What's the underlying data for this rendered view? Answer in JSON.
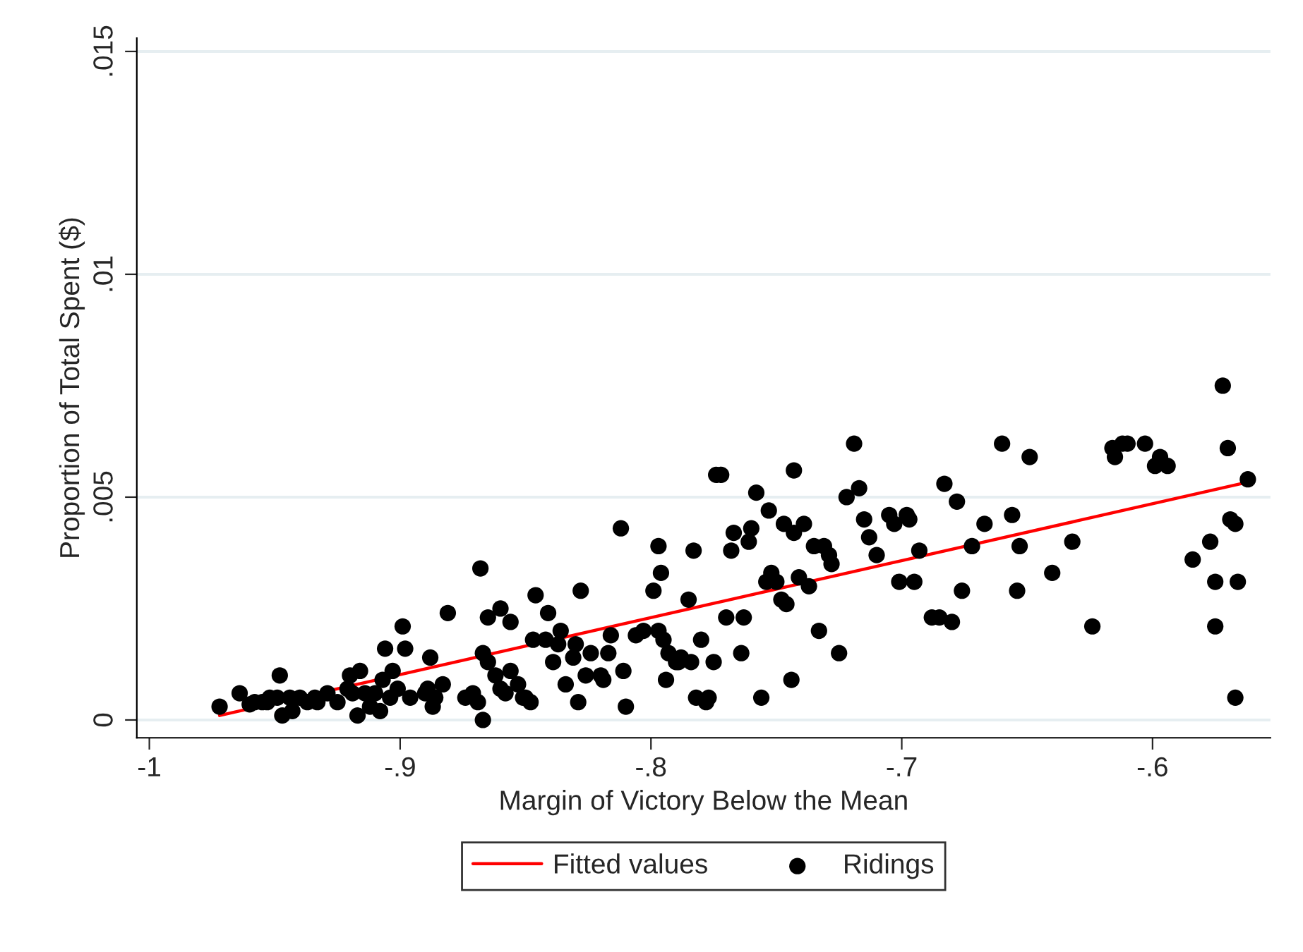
{
  "chart_data": {
    "type": "scatter",
    "xlabel": "Margin of Victory Below the Mean",
    "ylabel": "Proportion of Total Spent ($)",
    "xlim": [
      -1.005,
      -0.553
    ],
    "ylim": [
      -0.0004,
      0.0153
    ],
    "xticks": [
      {
        "value": -1,
        "label": "-1"
      },
      {
        "value": -0.9,
        "label": "-.9"
      },
      {
        "value": -0.8,
        "label": "-.8"
      },
      {
        "value": -0.7,
        "label": "-.7"
      },
      {
        "value": -0.6,
        "label": "-.6"
      }
    ],
    "yticks": [
      {
        "value": 0,
        "label": "0"
      },
      {
        "value": 0.005,
        "label": ".005"
      },
      {
        "value": 0.01,
        "label": ".01"
      },
      {
        "value": 0.015,
        "label": ".015"
      }
    ],
    "grid": "y",
    "legend": "bottom",
    "series": [
      {
        "name": "Fitted values",
        "type": "line",
        "color": "#ff0000",
        "x": [
          -0.972,
          -0.561
        ],
        "values": [
          0.0001,
          0.00535
        ]
      },
      {
        "name": "Ridings",
        "type": "scatter",
        "marker": "circle",
        "color": "#000000",
        "x": [
          -0.972,
          -0.964,
          -0.96,
          -0.958,
          -0.955,
          -0.953,
          -0.952,
          -0.949,
          -0.947,
          -0.948,
          -0.944,
          -0.943,
          -0.94,
          -0.937,
          -0.934,
          -0.933,
          -0.929,
          -0.925,
          -0.921,
          -0.92,
          -0.919,
          -0.917,
          -0.916,
          -0.914,
          -0.912,
          -0.91,
          -0.908,
          -0.907,
          -0.906,
          -0.904,
          -0.903,
          -0.901,
          -0.899,
          -0.898,
          -0.896,
          -0.89,
          -0.889,
          -0.888,
          -0.887,
          -0.886,
          -0.883,
          -0.881,
          -0.874,
          -0.871,
          -0.869,
          -0.868,
          -0.867,
          -0.867,
          -0.865,
          -0.865,
          -0.862,
          -0.86,
          -0.86,
          -0.858,
          -0.856,
          -0.856,
          -0.853,
          -0.851,
          -0.85,
          -0.848,
          -0.847,
          -0.846,
          -0.842,
          -0.841,
          -0.839,
          -0.837,
          -0.836,
          -0.834,
          -0.831,
          -0.83,
          -0.829,
          -0.828,
          -0.826,
          -0.824,
          -0.82,
          -0.819,
          -0.817,
          -0.816,
          -0.812,
          -0.811,
          -0.81,
          -0.806,
          -0.803,
          -0.799,
          -0.797,
          -0.797,
          -0.796,
          -0.795,
          -0.794,
          -0.793,
          -0.79,
          -0.789,
          -0.788,
          -0.785,
          -0.784,
          -0.783,
          -0.782,
          -0.78,
          -0.778,
          -0.777,
          -0.775,
          -0.774,
          -0.772,
          -0.77,
          -0.768,
          -0.767,
          -0.764,
          -0.763,
          -0.761,
          -0.76,
          -0.758,
          -0.756,
          -0.754,
          -0.753,
          -0.752,
          -0.75,
          -0.748,
          -0.747,
          -0.746,
          -0.744,
          -0.743,
          -0.743,
          -0.741,
          -0.739,
          -0.737,
          -0.735,
          -0.733,
          -0.731,
          -0.729,
          -0.728,
          -0.725,
          -0.722,
          -0.719,
          -0.717,
          -0.715,
          -0.713,
          -0.71,
          -0.705,
          -0.703,
          -0.701,
          -0.698,
          -0.697,
          -0.695,
          -0.693,
          -0.688,
          -0.685,
          -0.683,
          -0.68,
          -0.678,
          -0.676,
          -0.672,
          -0.667,
          -0.66,
          -0.656,
          -0.654,
          -0.653,
          -0.649,
          -0.64,
          -0.632,
          -0.624,
          -0.616,
          -0.615,
          -0.612,
          -0.61,
          -0.603,
          -0.599,
          -0.597,
          -0.594,
          -0.584,
          -0.577,
          -0.575,
          -0.575,
          -0.572,
          -0.57,
          -0.569,
          -0.567,
          -0.567,
          -0.566,
          -0.562
        ],
        "values": [
          0.0003,
          0.0006,
          0.00035,
          0.0004,
          0.0004,
          0.0004,
          0.0005,
          0.0005,
          0.0001,
          0.001,
          0.0005,
          0.0002,
          0.0005,
          0.0004,
          0.0005,
          0.0004,
          0.0006,
          0.0004,
          0.0007,
          0.001,
          0.0006,
          0.0001,
          0.0011,
          0.0006,
          0.0003,
          0.0006,
          0.0002,
          0.0009,
          0.0016,
          0.0005,
          0.0011,
          0.0007,
          0.0021,
          0.0016,
          0.0005,
          0.0006,
          0.0007,
          0.0014,
          0.0003,
          0.0005,
          0.0008,
          0.0024,
          0.0005,
          0.0006,
          0.0004,
          0.0034,
          0.0,
          0.0015,
          0.0023,
          0.0013,
          0.001,
          0.0007,
          0.0025,
          0.0006,
          0.0011,
          0.0022,
          0.0008,
          0.0005,
          0.0005,
          0.0004,
          0.0018,
          0.0028,
          0.0018,
          0.0024,
          0.0013,
          0.0017,
          0.002,
          0.0008,
          0.0014,
          0.0017,
          0.0004,
          0.0029,
          0.001,
          0.0015,
          0.001,
          0.0009,
          0.0015,
          0.0019,
          0.0043,
          0.0011,
          0.0003,
          0.0019,
          0.002,
          0.0029,
          0.002,
          0.0039,
          0.0033,
          0.0018,
          0.0009,
          0.0015,
          0.0013,
          0.0013,
          0.0014,
          0.0027,
          0.0013,
          0.0038,
          0.0005,
          0.0018,
          0.0004,
          0.0005,
          0.0013,
          0.0055,
          0.0055,
          0.0023,
          0.0038,
          0.0042,
          0.0015,
          0.0023,
          0.004,
          0.0043,
          0.0051,
          0.0005,
          0.0031,
          0.0047,
          0.0033,
          0.0031,
          0.0027,
          0.0044,
          0.0026,
          0.0009,
          0.0056,
          0.0042,
          0.0032,
          0.0044,
          0.003,
          0.0039,
          0.002,
          0.0039,
          0.0037,
          0.0035,
          0.0015,
          0.005,
          0.0062,
          0.0052,
          0.0045,
          0.0041,
          0.0037,
          0.0046,
          0.0044,
          0.0031,
          0.0046,
          0.0045,
          0.0031,
          0.0038,
          0.0023,
          0.0023,
          0.0053,
          0.0022,
          0.0049,
          0.0029,
          0.0039,
          0.0044,
          0.0062,
          0.0046,
          0.0029,
          0.0039,
          0.0059,
          0.0033,
          0.004,
          0.0021,
          0.0061,
          0.0059,
          0.0062,
          0.0062,
          0.0062,
          0.0057,
          0.0059,
          0.0057,
          0.0036,
          0.004,
          0.0031,
          0.0021,
          0.0075,
          0.0061,
          0.0045,
          0.0044,
          0.0005,
          0.0031,
          0.0054
        ]
      }
    ]
  }
}
